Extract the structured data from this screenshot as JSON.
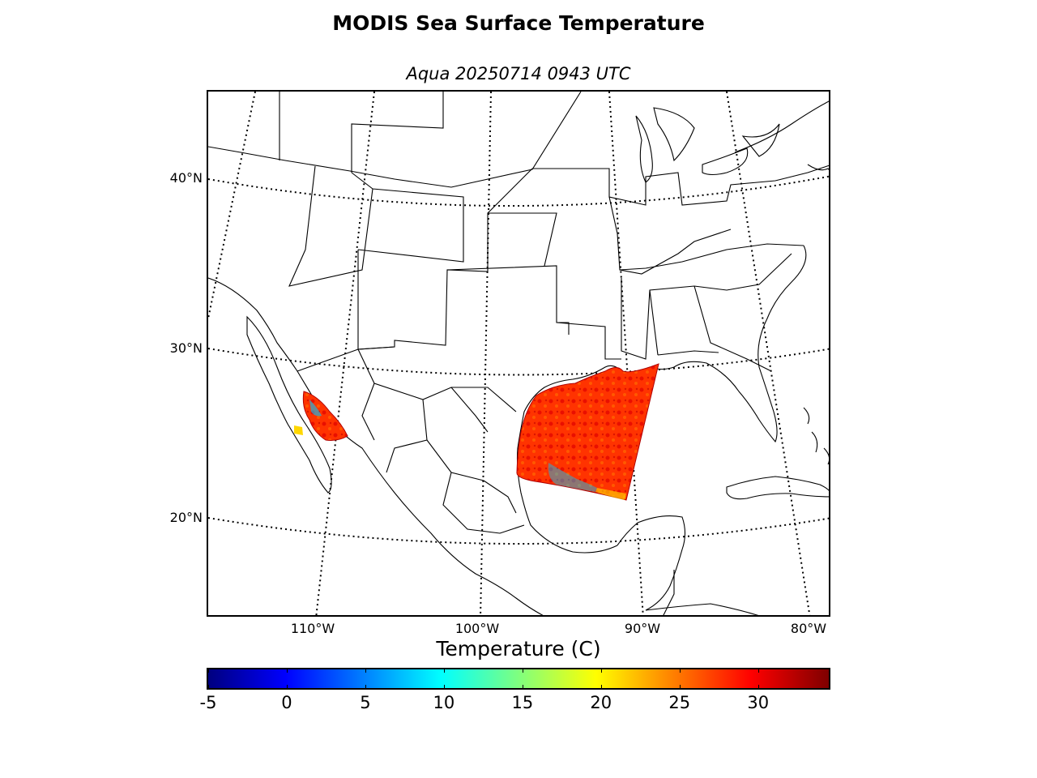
{
  "title": "MODIS Sea Surface Temperature",
  "subtitle": "Aqua 20250714 0943 UTC",
  "map": {
    "lat_labels": [
      "40°N",
      "30°N",
      "20°N"
    ],
    "lon_labels": [
      "110°W",
      "100°W",
      "90°W",
      "80°W"
    ],
    "colors": {
      "coast": "#000000",
      "graticule": "#000000",
      "sst_base": "#ff2a00",
      "sst_warm": "#e00000",
      "sst_mid": "#ff5a00",
      "sst_cool": "#00c8ff",
      "sst_yellow": "#ffe000"
    }
  },
  "colorbar": {
    "title": "Temperature (C)",
    "tick_labels": [
      "-5",
      "0",
      "5",
      "10",
      "15",
      "20",
      "25",
      "30"
    ],
    "min": -5,
    "max": 34.5,
    "colormap": "jet",
    "stops": [
      "#00007f",
      "#0000ff",
      "#007fff",
      "#00ffff",
      "#7fff7f",
      "#ffff00",
      "#ff7f00",
      "#ff0000",
      "#7f0000"
    ]
  }
}
